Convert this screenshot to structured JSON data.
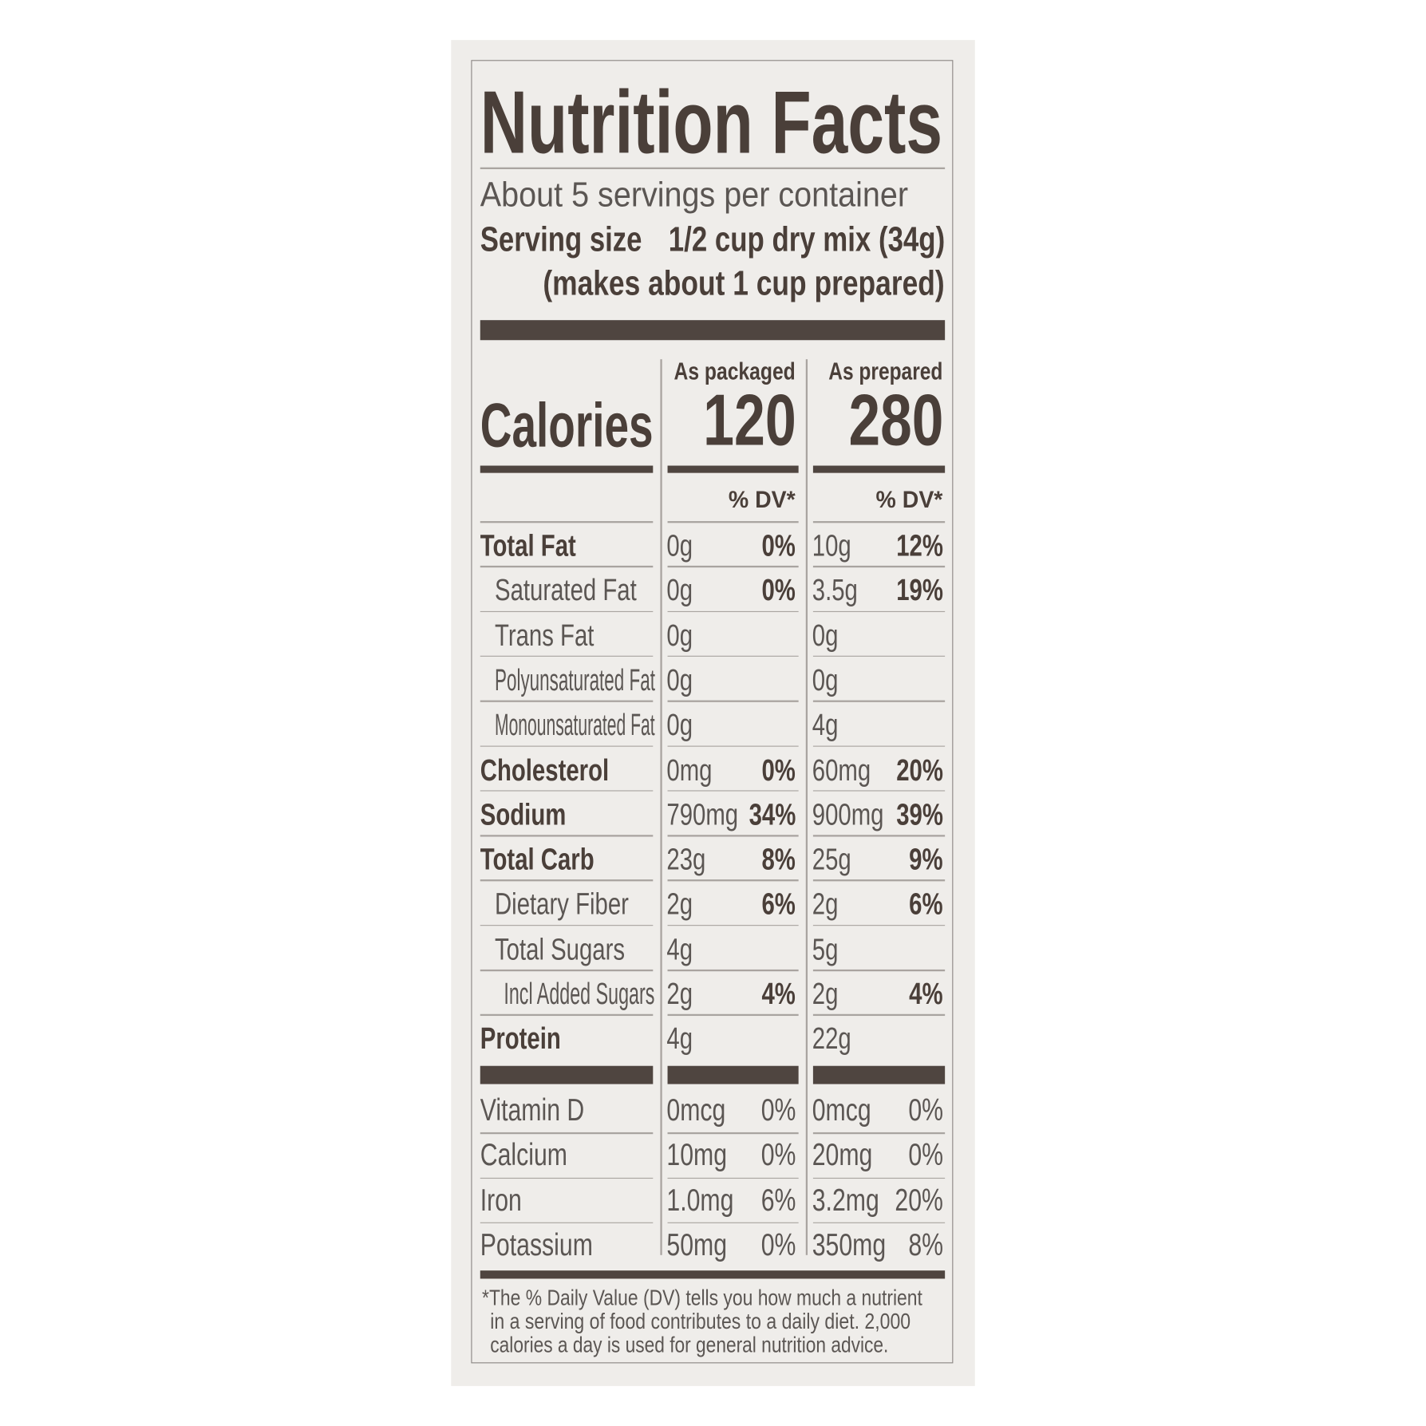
{
  "title": "Nutrition Facts",
  "servings": "About 5 servings per container",
  "serving_size_label": "Serving size",
  "serving_size_value": "1/2 cup dry mix (34g)",
  "serving_size_note": "(makes about 1 cup prepared)",
  "calories_label": "Calories",
  "columns": [
    {
      "header": "As packaged",
      "calories": "120",
      "dv_header": "% DV*"
    },
    {
      "header": "As prepared",
      "calories": "280",
      "dv_header": "% DV*"
    }
  ],
  "rows": [
    {
      "label": "Total Fat",
      "bold": true,
      "indent": 0,
      "pkg": "0g",
      "pkg_dv": "0%",
      "prep": "10g",
      "prep_dv": "12%"
    },
    {
      "label": "Saturated Fat",
      "bold": false,
      "indent": 1,
      "pkg": "0g",
      "pkg_dv": "0%",
      "prep": "3.5g",
      "prep_dv": "19%"
    },
    {
      "label": "Trans Fat",
      "bold": false,
      "indent": 1,
      "pkg": "0g",
      "pkg_dv": "",
      "prep": "0g",
      "prep_dv": ""
    },
    {
      "label": "Polyunsaturated Fat",
      "bold": false,
      "indent": 1,
      "pkg": "0g",
      "pkg_dv": "",
      "prep": "0g",
      "prep_dv": ""
    },
    {
      "label": "Monounsaturated Fat",
      "bold": false,
      "indent": 1,
      "pkg": "0g",
      "pkg_dv": "",
      "prep": "4g",
      "prep_dv": ""
    },
    {
      "label": "Cholesterol",
      "bold": true,
      "indent": 0,
      "pkg": "0mg",
      "pkg_dv": "0%",
      "prep": "60mg",
      "prep_dv": "20%"
    },
    {
      "label": "Sodium",
      "bold": true,
      "indent": 0,
      "pkg": "790mg",
      "pkg_dv": "34%",
      "prep": "900mg",
      "prep_dv": "39%"
    },
    {
      "label": "Total Carb",
      "bold": true,
      "indent": 0,
      "pkg": "23g",
      "pkg_dv": "8%",
      "prep": "25g",
      "prep_dv": "9%"
    },
    {
      "label": "Dietary Fiber",
      "bold": false,
      "indent": 1,
      "pkg": "2g",
      "pkg_dv": "6%",
      "prep": "2g",
      "prep_dv": "6%"
    },
    {
      "label": "Total Sugars",
      "bold": false,
      "indent": 1,
      "pkg": "4g",
      "pkg_dv": "",
      "prep": "5g",
      "prep_dv": ""
    },
    {
      "label": "Incl Added Sugars",
      "bold": false,
      "indent": 2,
      "pkg": "2g",
      "pkg_dv": "4%",
      "prep": "2g",
      "prep_dv": "4%"
    },
    {
      "label": "Protein",
      "bold": true,
      "indent": 0,
      "pkg": "4g",
      "pkg_dv": "",
      "prep": "22g",
      "prep_dv": ""
    }
  ],
  "vitamins": [
    {
      "label": "Vitamin D",
      "pkg": "0mcg",
      "pkg_dv": "0%",
      "prep": "0mcg",
      "prep_dv": "0%"
    },
    {
      "label": "Calcium",
      "pkg": "10mg",
      "pkg_dv": "0%",
      "prep": "20mg",
      "prep_dv": "0%"
    },
    {
      "label": "Iron",
      "pkg": "1.0mg",
      "pkg_dv": "6%",
      "prep": "3.2mg",
      "prep_dv": "20%"
    },
    {
      "label": "Potassium",
      "pkg": "50mg",
      "pkg_dv": "0%",
      "prep": "350mg",
      "prep_dv": "8%"
    }
  ],
  "footnote": [
    "*The % Daily Value (DV) tells you how much a nutrient",
    "in a serving of food contributes to a daily diet. 2,000",
    "calories a day is used for general nutrition advice."
  ],
  "colors": {
    "ink": "#4a3f39",
    "text": "#5b5653",
    "panel": "#efedea"
  }
}
